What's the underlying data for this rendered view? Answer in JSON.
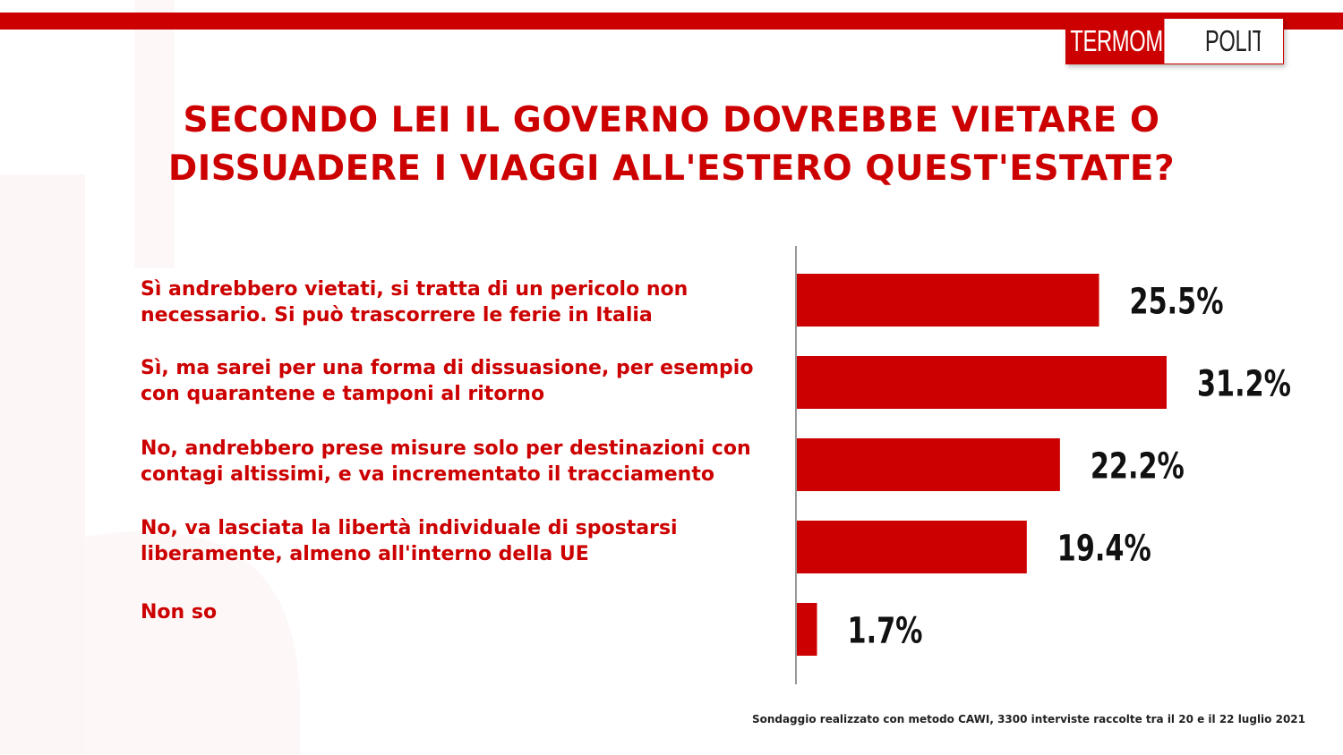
{
  "brand": {
    "logo_part1": "TERMOMETRO",
    "logo_part2": "POLITICO"
  },
  "colors": {
    "accent": "#cc0000",
    "text_dark": "#222222",
    "background": "#ffffff"
  },
  "title_line1": "SECONDO LEI IL GOVERNO DOVREBBE VIETARE O",
  "title_line2": "DISSUADERE I VIAGGI ALL'ESTERO QUEST'ESTATE?",
  "answers": [
    {
      "line1": "Sì andrebbero vietati, si tratta di un pericolo non",
      "line2": "necessario. Si può trascorrere le ferie in Italia"
    },
    {
      "line1": "Sì, ma sarei per una forma di dissuasione, per esempio",
      "line2": "con quarantene e tamponi al ritorno"
    },
    {
      "line1": "No, andrebbero prese misure solo per destinazioni con",
      "line2": "contagi altissimi, e va incrementato il tracciamento"
    },
    {
      "line1": "No, va lasciata la libertà  individuale di spostarsi",
      "line2": "liberamente, almeno all'interno della UE"
    },
    {
      "line1": "Non so",
      "line2": ""
    }
  ],
  "chart_data": {
    "type": "bar",
    "orientation": "horizontal",
    "title": "SECONDO LEI IL GOVERNO DOVREBBE VIETARE O DISSUADERE I VIAGGI ALL'ESTERO QUEST'ESTATE?",
    "categories": [
      "Sì andrebbero vietati, si tratta di un pericolo non necessario. Si può trascorrere le ferie in Italia",
      "Sì, ma sarei per una forma di dissuasione, per esempio con quarantene e tamponi al ritorno",
      "No, andrebbero prese misure solo per destinazioni con contagi altissimi, e va incrementato il tracciamento",
      "No, va lasciata la libertà  individuale di spostarsi liberamente, almeno all'interno della UE",
      "Non so"
    ],
    "values": [
      25.5,
      31.2,
      22.2,
      19.4,
      1.7
    ],
    "value_labels": [
      "25.5%",
      "31.2%",
      "22.2%",
      "19.4%",
      "1.7%"
    ],
    "xlim": [
      0,
      31.2
    ],
    "bar_color": "#cc0000",
    "grid": false,
    "legend": "none"
  },
  "footer": "Sondaggio realizzato con metodo CAWI, 3300 interviste raccolte tra il 20 e il 22  luglio 2021"
}
